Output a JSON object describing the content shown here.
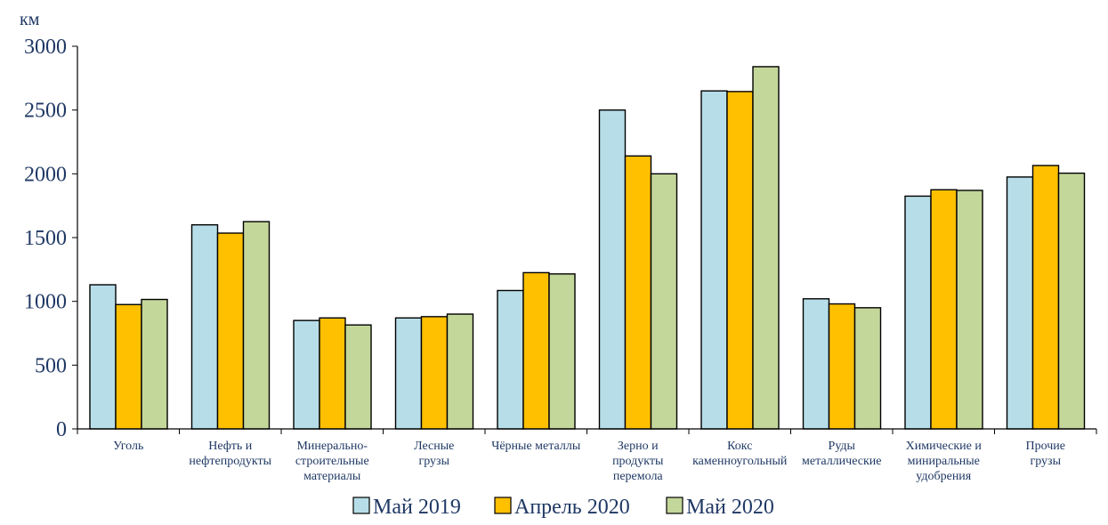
{
  "chart_data": {
    "type": "bar",
    "unit_label": "км",
    "ylim": [
      0,
      3000
    ],
    "yticks": [
      0,
      500,
      1000,
      1500,
      2000,
      2500,
      3000
    ],
    "grid": false,
    "legend_position": "bottom",
    "categories": [
      [
        "Уголь"
      ],
      [
        "Нефть и",
        "нефтепродукты"
      ],
      [
        "Минерально-",
        "строительные",
        "материалы"
      ],
      [
        "Лесные",
        "грузы"
      ],
      [
        "Чёрные металлы"
      ],
      [
        "Зерно и",
        "продукты",
        "перемола"
      ],
      [
        "Кокс",
        "каменноугольный"
      ],
      [
        "Руды",
        "металлические"
      ],
      [
        "Химические и",
        "миниральные",
        "удобрения"
      ],
      [
        "Прочие",
        "грузы"
      ]
    ],
    "series": [
      {
        "name": "Май 2019",
        "color": "#b7dee8",
        "values": [
          1130,
          1600,
          850,
          870,
          1085,
          2500,
          2650,
          1020,
          1825,
          1975
        ]
      },
      {
        "name": "Апрель 2020",
        "color": "#ffc000",
        "values": [
          975,
          1535,
          870,
          880,
          1225,
          2140,
          2645,
          980,
          1875,
          2065
        ]
      },
      {
        "name": "Май 2020",
        "color": "#c4d79b",
        "values": [
          1015,
          1625,
          815,
          900,
          1215,
          2000,
          2840,
          950,
          1870,
          2005
        ]
      }
    ]
  }
}
